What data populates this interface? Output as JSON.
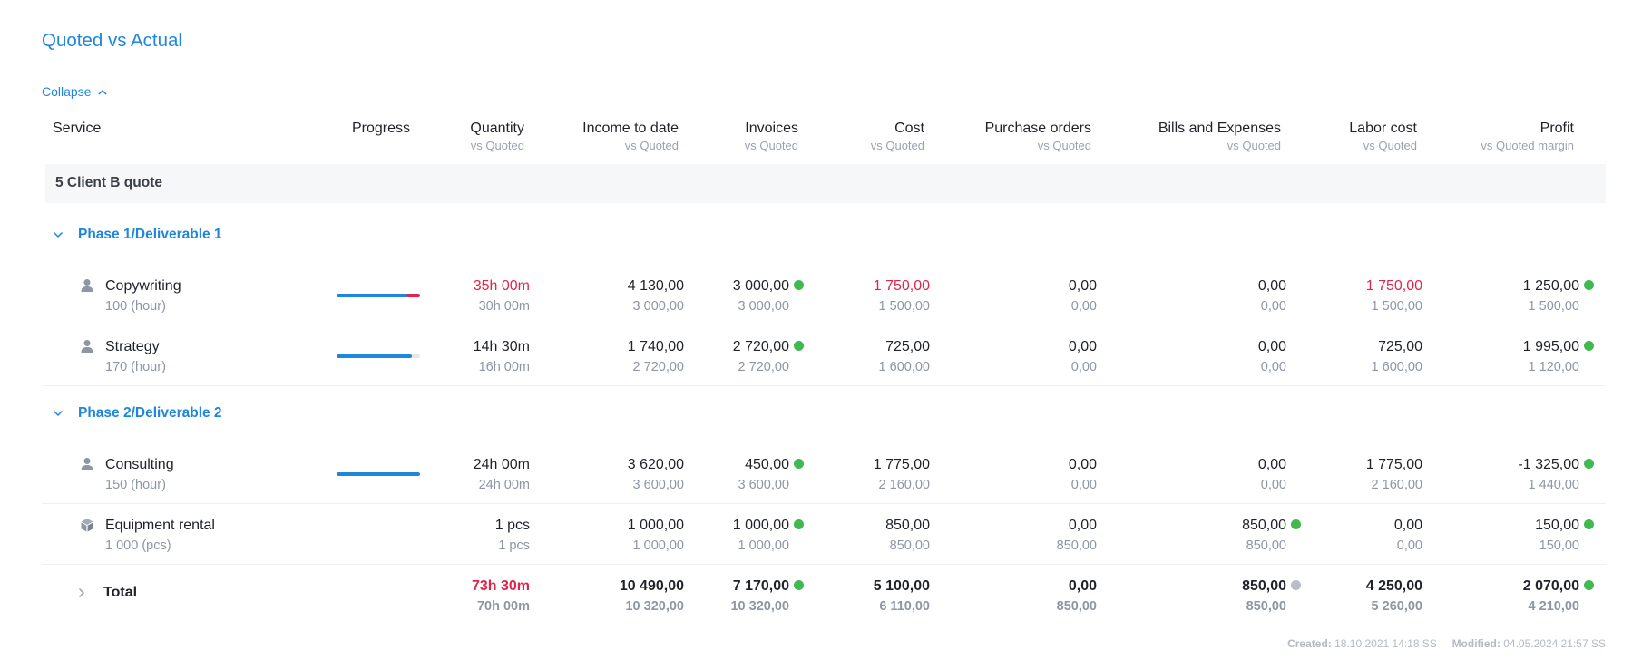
{
  "page": {
    "title": "Quoted vs Actual",
    "collapse_label": "Collapse"
  },
  "colors": {
    "accent": "#1e86dd",
    "over_budget": "#e0244a",
    "status_ok": "#3fb950",
    "status_neutral": "#b8bdc7"
  },
  "columns": [
    {
      "key": "service",
      "label": "Service",
      "sub": ""
    },
    {
      "key": "progress",
      "label": "Progress",
      "sub": ""
    },
    {
      "key": "quantity",
      "label": "Quantity",
      "sub": "vs Quoted"
    },
    {
      "key": "income",
      "label": "Income to date",
      "sub": "vs Quoted"
    },
    {
      "key": "invoices",
      "label": "Invoices",
      "sub": "vs Quoted"
    },
    {
      "key": "cost",
      "label": "Cost",
      "sub": "vs Quoted"
    },
    {
      "key": "po",
      "label": "Purchase orders",
      "sub": "vs Quoted"
    },
    {
      "key": "bills",
      "label": "Bills and Expenses",
      "sub": "vs Quoted"
    },
    {
      "key": "labor",
      "label": "Labor cost",
      "sub": "vs Quoted"
    },
    {
      "key": "profit",
      "label": "Profit",
      "sub": "vs Quoted margin"
    }
  ],
  "quote": {
    "label": "5 Client B quote",
    "phases": [
      {
        "label": "Phase 1/Deliverable 1",
        "rows": [
          {
            "icon": "person-icon",
            "name": "Copywriting",
            "unit": "100 (hour)",
            "progress": 1.17,
            "quantity": "35h 00m",
            "quantity_quoted": "30h 00m",
            "income": "4 130,00",
            "income_quoted": "3 000,00",
            "invoices": "3 000,00",
            "invoices_quoted": "3 000,00",
            "cost": "1 750,00",
            "cost_quoted": "1 500,00",
            "po": "0,00",
            "po_quoted": "0,00",
            "bills": "0,00",
            "bills_quoted": "0,00",
            "labor": "1 750,00",
            "labor_quoted": "1 500,00",
            "profit": "1 250,00",
            "profit_quoted": "1 500,00"
          },
          {
            "icon": "person-icon",
            "name": "Strategy",
            "unit": "170 (hour)",
            "progress": 0.906,
            "quantity": "14h 30m",
            "quantity_quoted": "16h 00m",
            "income": "1 740,00",
            "income_quoted": "2 720,00",
            "invoices": "2 720,00",
            "invoices_quoted": "2 720,00",
            "cost": "725,00",
            "cost_quoted": "1 600,00",
            "po": "0,00",
            "po_quoted": "0,00",
            "bills": "0,00",
            "bills_quoted": "0,00",
            "labor": "725,00",
            "labor_quoted": "1 600,00",
            "profit": "1 995,00",
            "profit_quoted": "1 120,00"
          }
        ]
      },
      {
        "label": "Phase 2/Deliverable 2",
        "rows": [
          {
            "icon": "person-icon",
            "name": "Consulting",
            "unit": "150 (hour)",
            "progress": 1.0,
            "quantity": "24h 00m",
            "quantity_quoted": "24h 00m",
            "income": "3 620,00",
            "income_quoted": "3 600,00",
            "invoices": "450,00",
            "invoices_quoted": "3 600,00",
            "cost": "1 775,00",
            "cost_quoted": "2 160,00",
            "po": "0,00",
            "po_quoted": "0,00",
            "bills": "0,00",
            "bills_quoted": "0,00",
            "labor": "1 775,00",
            "labor_quoted": "2 160,00",
            "profit": "-1 325,00",
            "profit_quoted": "1 440,00"
          },
          {
            "icon": "box-icon",
            "name": "Equipment rental",
            "unit": "1 000 (pcs)",
            "quantity": "1 pcs",
            "quantity_quoted": "1 pcs",
            "income": "1 000,00",
            "income_quoted": "1 000,00",
            "invoices": "1 000,00",
            "invoices_quoted": "1 000,00",
            "cost": "850,00",
            "cost_quoted": "850,00",
            "po": "0,00",
            "po_quoted": "850,00",
            "bills": "850,00",
            "bills_quoted": "850,00",
            "labor": "0,00",
            "labor_quoted": "0,00",
            "profit": "150,00",
            "profit_quoted": "150,00"
          }
        ]
      }
    ]
  },
  "total": {
    "label": "Total",
    "quantity": "73h 30m",
    "quantity_quoted": "70h 00m",
    "income": "10 490,00",
    "income_quoted": "10 320,00",
    "invoices": "7 170,00",
    "invoices_quoted": "10 320,00",
    "cost": "5 100,00",
    "cost_quoted": "6 110,00",
    "po": "0,00",
    "po_quoted": "850,00",
    "bills": "850,00",
    "bills_quoted": "850,00",
    "labor": "4 250,00",
    "labor_quoted": "5 260,00",
    "profit": "2 070,00",
    "profit_quoted": "4 210,00"
  },
  "footer": {
    "created_label": "Created:",
    "created_value": "18.10.2021 14:18 SS",
    "modified_label": "Modified:",
    "modified_value": "04.05.2024 21:57 SS"
  }
}
